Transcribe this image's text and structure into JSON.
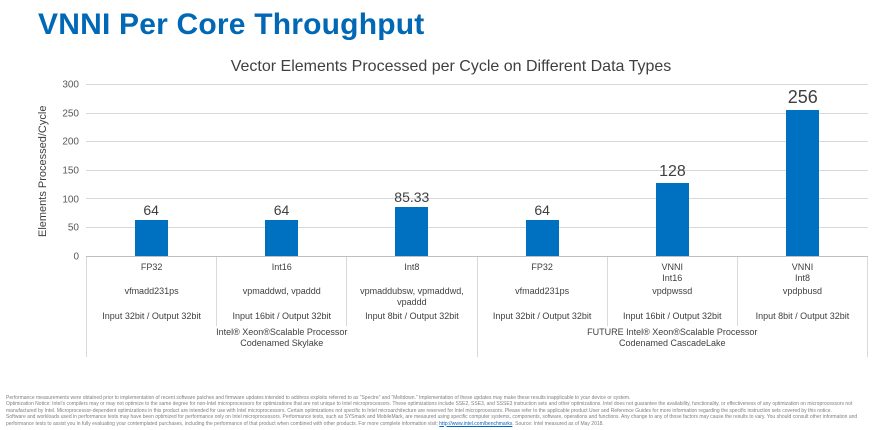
{
  "slide": {
    "title": "VNNI Per Core Throughput"
  },
  "chart_data": {
    "type": "bar",
    "title": "Vector Elements Processed per Cycle on Different Data Types",
    "xlabel": "",
    "ylabel": "Elements Processed/Cycle",
    "ylim": [
      0,
      300
    ],
    "yticks": [
      0,
      50,
      100,
      150,
      200,
      250,
      300
    ],
    "grid": true,
    "legend": false,
    "bar_color": "#0070c0",
    "categories": [
      {
        "type": "FP32",
        "instructions": "vfmadd231ps",
        "io": "Input 32bit / Output 32bit",
        "value": 64,
        "label": "64"
      },
      {
        "type": "Int16",
        "instructions": "vpmaddwd, vpaddd",
        "io": "Input 16bit / Output 32bit",
        "value": 64,
        "label": "64"
      },
      {
        "type": "Int8",
        "instructions": "vpmaddubsw, vpmaddwd,\nvpaddd",
        "io": "Input 8bit / Output 32bit",
        "value": 85.33,
        "label": "85.33"
      },
      {
        "type": "FP32",
        "instructions": "vfmadd231ps",
        "io": "Input 32bit / Output 32bit",
        "value": 64,
        "label": "64"
      },
      {
        "type": "VNNI\nInt16",
        "instructions": "vpdpwssd",
        "io": "Input 16bit / Output 32bit",
        "value": 128,
        "label": "128"
      },
      {
        "type": "VNNI\nInt8",
        "instructions": "vpdpbusd",
        "io": "Input 8bit / Output 32bit",
        "value": 256,
        "label": "256"
      }
    ],
    "groups": [
      {
        "label": "Intel® Xeon®Scalable Processor\nCodenamed Skylake",
        "span": 3
      },
      {
        "label": "FUTURE Intel® Xeon®Scalable Processor\nCodenamed CascadeLake",
        "span": 3
      }
    ]
  },
  "footer": {
    "para1": "Performance measurements were obtained prior to implementation of recent software patches and firmware updates intended to address exploits referred to as “Spectre” and “Meltdown.”  Implementation of these updates may make these results inapplicable to your device or system.",
    "para2": "Optimization Notice: Intel’s compilers may or may not optimize to the same degree for non-Intel microprocessors for optimizations that are not unique to Intel microprocessors. These optimizations include SSE2, SSE3, and SSSE3 instruction sets and other optimizations. Intel does not guarantee the availability, functionality, or effectiveness of any optimization on microprocessors not manufactured by Intel. Microprocessor-dependent optimizations in this product are intended for use with Intel microprocessors. Certain optimizations not specific to Intel microarchitecture are reserved for Intel microprocessors. Please refer to the applicable product User and Reference Guides for more information regarding the specific instruction sets covered by this notice.",
    "para3_before": "Software and workloads used in performance tests may have been optimized for performance only on Intel microprocessors.  Performance tests, such as SYSmark and MobileMark, are measured using specific computer systems, components, software, operations and functions.  Any change to any of those factors may cause the results to vary.  You should consult other information and performance tests to assist you in fully evaluating your contemplated purchases, including the performance of that product when combined with other products.  For more complete information visit: ",
    "link": "http://www.intel.com/benchmarks",
    "para3_after": ".  Source: Intel measured as of May 2018."
  }
}
